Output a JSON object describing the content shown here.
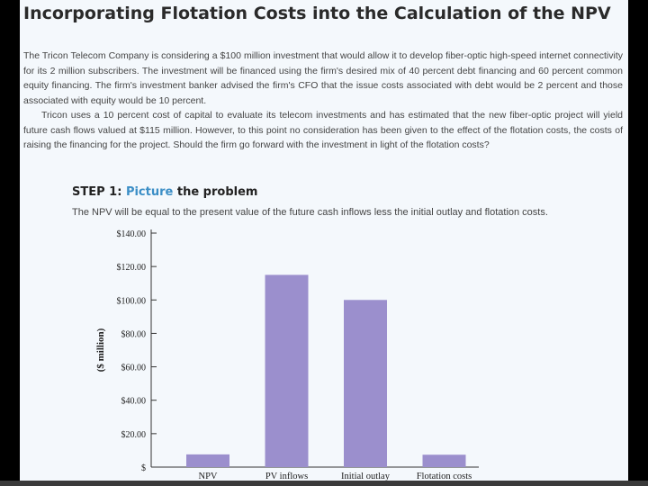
{
  "title": "Incorporating Flotation Costs into the Calculation of the NPV",
  "paragraphs": [
    "The Tricon Telecom Company is considering a $100 million investment that would allow it to develop fiber-optic high-speed internet connectivity for its 2 million subscribers. The investment will be financed using the firm's desired mix of 40 percent debt financing and 60 percent common equity financing. The firm's investment banker advised the firm's CFO that the issue costs associated with debt would be 2 percent and those associated with equity would be 10 percent.",
    "Tricon uses a 10 percent cost of capital to evaluate its telecom investments and has estimated that the new fiber-optic project will yield future cash flows valued at $115 million. However, to this point no consideration has been given to the effect of the flotation costs, the costs of raising the financing for the project. Should the firm go forward with the investment in light of the flotation costs?"
  ],
  "step": {
    "label": "STEP 1:",
    "accent": "Picture",
    "rest": "the problem"
  },
  "step_description": "The NPV will be equal to the present value of the future cash inflows less the initial outlay and flotation costs.",
  "colors": {
    "bar": "#9b8fcd",
    "accent": "#3b8ec6"
  },
  "chart_data": {
    "type": "bar",
    "categories": [
      "NPV",
      "PV inflows",
      "Initial outlay",
      "Flotation costs"
    ],
    "values": [
      7.6,
      115,
      100,
      7.4
    ],
    "ylabel": "($ million)",
    "ylim": [
      0,
      140
    ],
    "yticks": [
      0,
      20,
      40,
      60,
      80,
      100,
      120,
      140
    ],
    "ytick_labels": [
      "$",
      "$20.00",
      "$40.00",
      "$60.00",
      "$80.00",
      "$100.00",
      "$120.00",
      "$140.00"
    ],
    "grid": false
  }
}
